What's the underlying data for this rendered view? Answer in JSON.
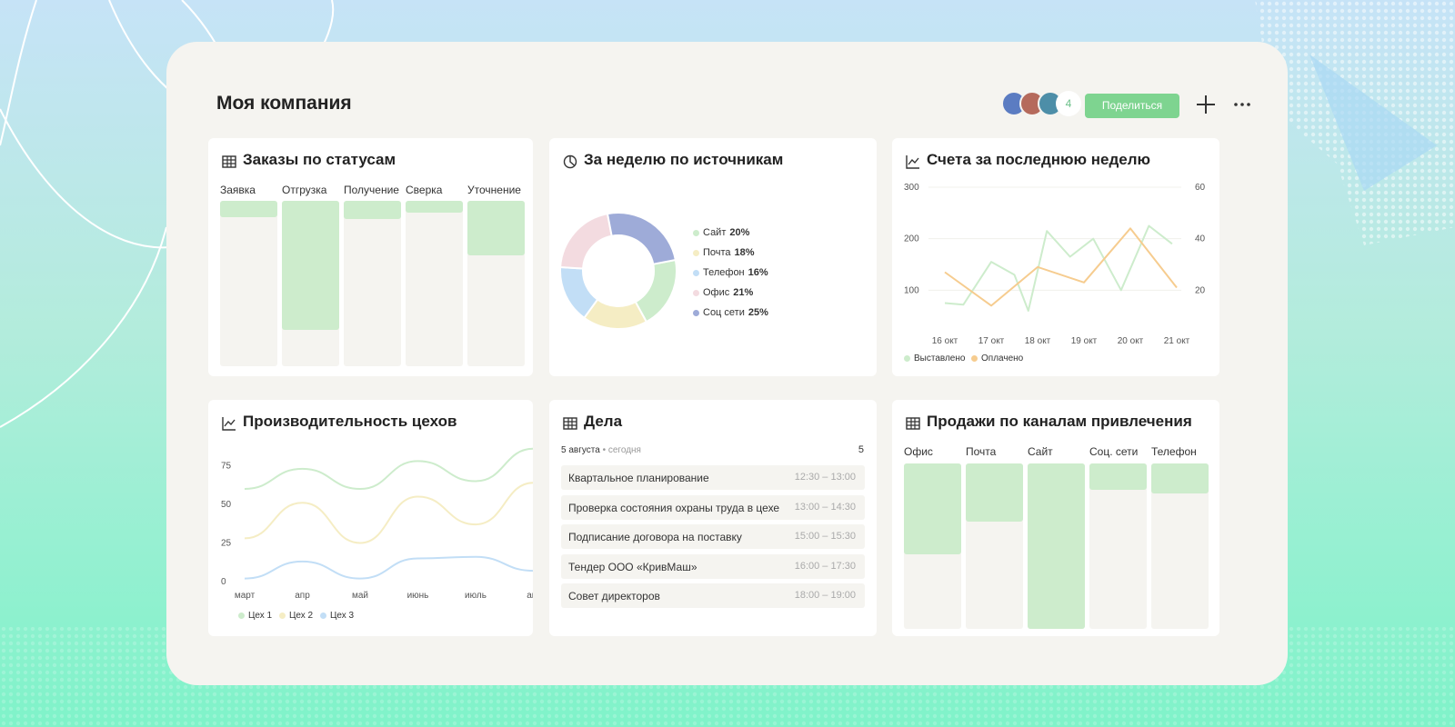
{
  "header": {
    "title": "Моя компания",
    "avatar_count": "4",
    "share_label": "Поделиться"
  },
  "colors": {
    "accent_green": "#7ed490",
    "bar_fill": "#cdeccc",
    "bar_bg": "#f5f4f0"
  },
  "orders": {
    "title": "Заказы по статусам",
    "icon": "table-icon",
    "columns": [
      {
        "label": "Заявка",
        "fill": 0.1
      },
      {
        "label": "Отгрузка",
        "fill": 0.78
      },
      {
        "label": "Получение",
        "fill": 0.11
      },
      {
        "label": "Сверка",
        "fill": 0.07
      },
      {
        "label": "Уточнение",
        "fill": 0.33
      }
    ]
  },
  "sources": {
    "title": "За неделю по источникам",
    "icon": "pie-chart-icon",
    "chart_data": {
      "type": "pie",
      "slices": [
        {
          "label": "Сайт",
          "pct_label": "20%",
          "value": 20,
          "color": "#cdeccc"
        },
        {
          "label": "Почта",
          "pct_label": "18%",
          "value": 18,
          "color": "#f5edc4"
        },
        {
          "label": "Телефон",
          "pct_label": "16%",
          "value": 16,
          "color": "#c2def6"
        },
        {
          "label": "Офис",
          "pct_label": "21%",
          "value": 21,
          "color": "#f3dbe0"
        },
        {
          "label": "Соц сети",
          "pct_label": "25%",
          "value": 25,
          "color": "#9eabd8"
        }
      ]
    }
  },
  "invoices": {
    "title": "Счета за последнюю неделю",
    "icon": "line-chart-icon",
    "chart_data": {
      "type": "line",
      "x": [
        "16 окт",
        "17 окт",
        "18 окт",
        "19 окт",
        "20 окт",
        "21 окт"
      ],
      "left_ticks": [
        "300",
        "200",
        "100"
      ],
      "right_ticks": [
        "60",
        "40",
        "20"
      ],
      "ylim_left": [
        0,
        300
      ],
      "ylim_right": [
        0,
        60
      ],
      "series": [
        {
          "name": "Выставлено",
          "color": "#cdeccc",
          "axis": "left",
          "points": [
            [
              0,
              75
            ],
            [
              0.4,
              72
            ],
            [
              1,
              155
            ],
            [
              1.5,
              130
            ],
            [
              1.8,
              60
            ],
            [
              2.2,
              215
            ],
            [
              2.7,
              165
            ],
            [
              3.2,
              200
            ],
            [
              3.8,
              100
            ],
            [
              4.4,
              225
            ],
            [
              4.9,
              190
            ]
          ]
        },
        {
          "name": "Оплачено",
          "color": "#f6cc8f",
          "axis": "right",
          "points": [
            [
              0,
              27
            ],
            [
              1,
              14
            ],
            [
              2,
              29
            ],
            [
              3,
              23
            ],
            [
              4,
              44
            ],
            [
              5,
              21
            ]
          ]
        }
      ]
    }
  },
  "production": {
    "title": "Производительность цехов",
    "icon": "line-chart-icon",
    "chart_data": {
      "type": "line",
      "x": [
        "март",
        "апр",
        "май",
        "июнь",
        "июль",
        "авг"
      ],
      "y_ticks": [
        "75",
        "50",
        "25",
        "0"
      ],
      "ylim": [
        0,
        100
      ],
      "series": [
        {
          "name": "Цех 1",
          "color": "#cdeccc",
          "values": [
            60,
            73,
            60,
            78,
            65,
            86
          ]
        },
        {
          "name": "Цех 2",
          "color": "#f5edc4",
          "values": [
            28,
            51,
            25,
            55,
            37,
            64
          ]
        },
        {
          "name": "Цех 3",
          "color": "#c2def6",
          "values": [
            2,
            13,
            2,
            15,
            16,
            7
          ]
        }
      ]
    }
  },
  "tasks": {
    "title": "Дела",
    "icon": "table-icon",
    "date": "5 августа",
    "separator": "•",
    "today": "сегодня",
    "count": "5",
    "items": [
      {
        "name": "Квартальное планирование",
        "time": "12:30 – 13:00"
      },
      {
        "name": "Проверка состояния охраны труда в цехе",
        "time": "13:00 – 14:30"
      },
      {
        "name": "Подписание договора на поставку",
        "time": "15:00 – 15:30"
      },
      {
        "name": "Тендер ООО «КривМаш»",
        "time": "16:00 – 17:30"
      },
      {
        "name": "Совет директоров",
        "time": "18:00 – 19:00"
      }
    ]
  },
  "channels": {
    "title": "Продажи по каналам привлечения",
    "icon": "table-icon",
    "columns": [
      {
        "label": "Офис",
        "fill": 0.55
      },
      {
        "label": "Почта",
        "fill": 0.35
      },
      {
        "label": "Сайт",
        "fill": 1.0
      },
      {
        "label": "Соц. сети",
        "fill": 0.16
      },
      {
        "label": "Телефон",
        "fill": 0.18
      }
    ]
  }
}
